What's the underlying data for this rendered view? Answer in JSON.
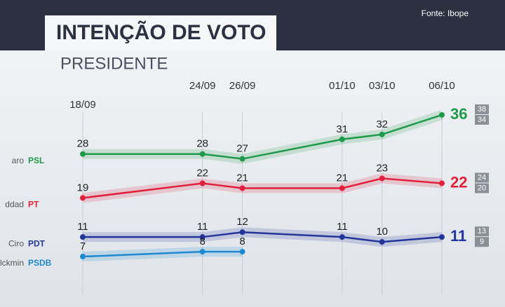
{
  "chart_data": {
    "type": "line",
    "title": "INTENÇÃO DE VOTO",
    "subtitle": "PRESIDENTE",
    "source": "Fonte: Ibope",
    "categories": [
      "18/09",
      "24/09",
      "26/09",
      "01/10",
      "03/10",
      "06/10"
    ],
    "ylim": [
      5,
      38
    ],
    "series": [
      {
        "name": "aro",
        "party": "PSL",
        "color": "#1f9a4a",
        "values": [
          28,
          28,
          27,
          31,
          32,
          36
        ],
        "margin": [
          38,
          34
        ]
      },
      {
        "name": "ddad",
        "party": "PT",
        "color": "#e0203c",
        "values": [
          19,
          22,
          21,
          21,
          23,
          22
        ],
        "margin": [
          24,
          20
        ]
      },
      {
        "name": "Ciro",
        "party": "PDT",
        "color": "#23359a",
        "values": [
          11,
          11,
          12,
          11,
          10,
          11
        ],
        "margin": [
          13,
          9
        ]
      },
      {
        "name": "Alckmin",
        "party": "PSDB",
        "color": "#1e88d0",
        "values": [
          7,
          8,
          8,
          null,
          null,
          null
        ]
      }
    ]
  }
}
